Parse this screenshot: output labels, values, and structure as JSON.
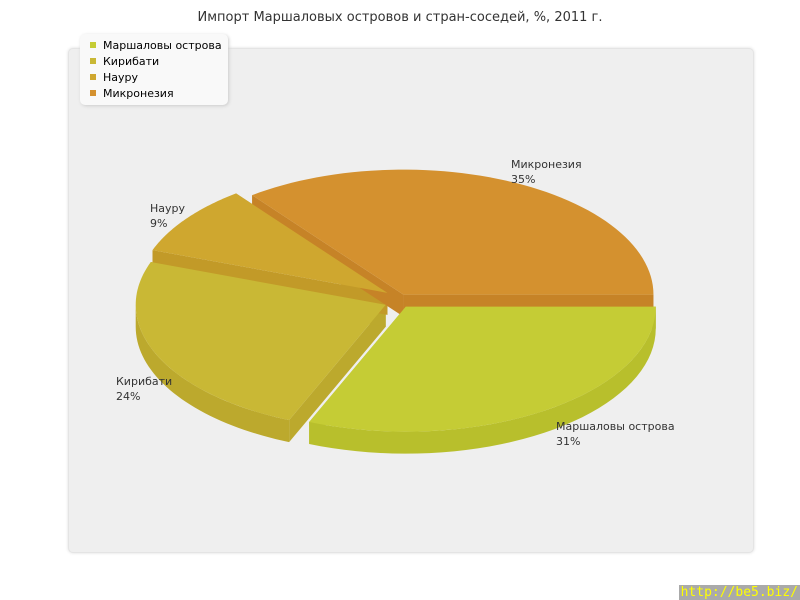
{
  "chart_data": {
    "type": "pie",
    "title": "Импорт Маршаловых островов и стран-соседей, %, 2011 г.",
    "categories": [
      "Маршаловы острова",
      "Кирибати",
      "Науру",
      "Микронезия"
    ],
    "values": [
      31,
      24,
      9,
      35
    ],
    "labels": [
      "31%",
      "24%",
      "9%",
      "35%"
    ],
    "colors": [
      "#c5cc35",
      "#c9b835",
      "#cfa72f",
      "#d4912f"
    ],
    "side_colors": [
      "#b8bf2c",
      "#bca92d",
      "#c29a28",
      "#c68327"
    ],
    "legend_position": "top-left",
    "three_d": true
  },
  "watermark": "http://be5.biz/"
}
